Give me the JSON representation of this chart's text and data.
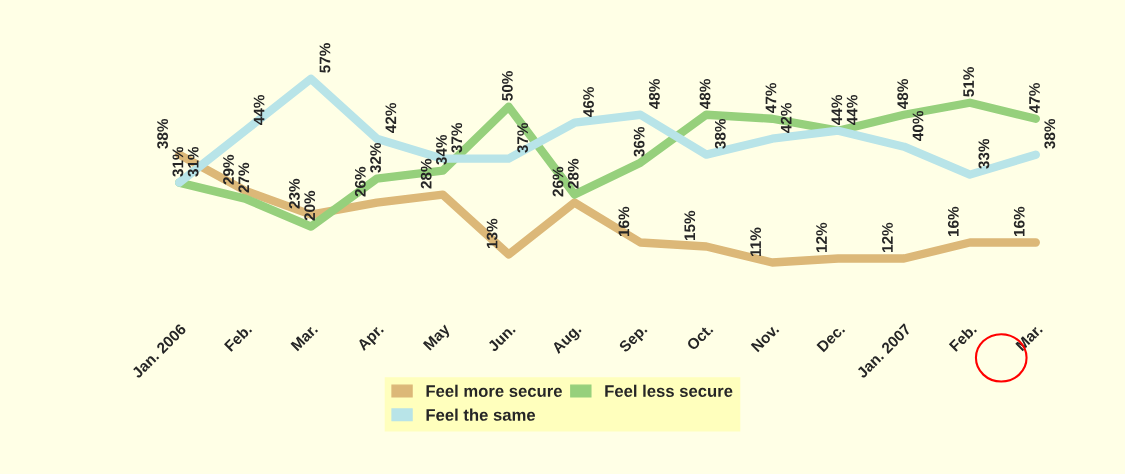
{
  "chart_data": {
    "type": "line",
    "categories": [
      "Jan. 2006",
      "Feb.",
      "Mar.",
      "Apr.",
      "May",
      "Jun.",
      "Aug.",
      "Sep.",
      "Oct.",
      "Nov.",
      "Dec.",
      "Jan. 2007",
      "Feb.",
      "Mar."
    ],
    "series": [
      {
        "name": "Feel more secure",
        "color": "#dcb878",
        "values": [
          38,
          29,
          23,
          26,
          28,
          13,
          26,
          16,
          15,
          11,
          12,
          12,
          16,
          16
        ],
        "value_labels": [
          "38%",
          "29%",
          "23%",
          "26%",
          "28%",
          "13%",
          "26%",
          "16%",
          "15%",
          "11%",
          "12%",
          "12%",
          "16%",
          "16%"
        ]
      },
      {
        "name": "Feel less secure",
        "color": "#96d07c",
        "values": [
          31,
          27,
          20,
          32,
          34,
          50,
          28,
          36,
          48,
          47,
          44,
          48,
          51,
          47
        ],
        "value_labels": [
          "31%",
          "27%",
          "20%",
          "32%",
          "34%",
          "50%",
          "28%",
          "36%",
          "48%",
          "47%",
          "44%",
          "48%",
          "51%",
          "47%"
        ]
      },
      {
        "name": "Feel the same",
        "color": "#b8e4e8",
        "values": [
          31,
          44,
          57,
          42,
          37,
          37,
          46,
          48,
          38,
          42,
          44,
          40,
          33,
          38
        ],
        "value_labels": [
          "31%",
          "44%",
          "57%",
          "42%",
          "37%",
          "37%",
          "46%",
          "48%",
          "38%",
          "42%",
          "44%",
          "40%",
          "33%",
          "38%"
        ]
      }
    ],
    "legend": "bottom",
    "grid": false,
    "marker": "none",
    "line_style": "solid",
    "tick_labels": "x"
  }
}
